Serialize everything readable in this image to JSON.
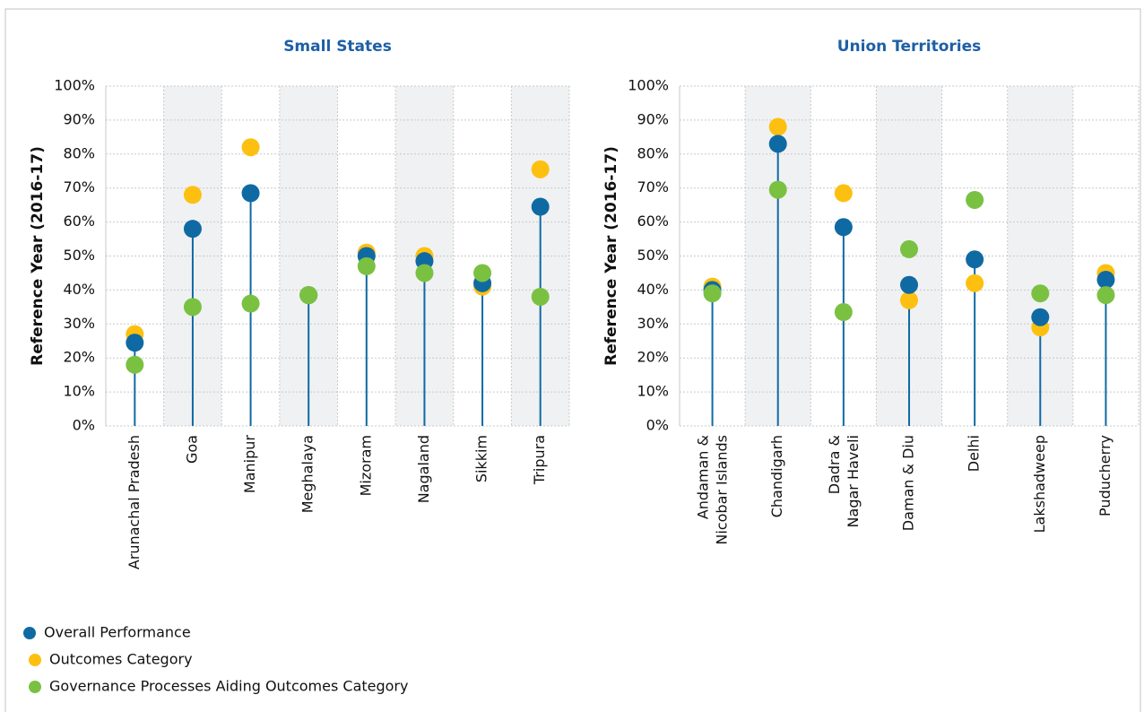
{
  "chart_data": [
    {
      "type": "lollipop",
      "title": "Small States",
      "y_label": "Reference Year (2016-17)",
      "categories": [
        "Arunachal Pradesh",
        "Goa",
        "Manipur",
        "Meghalaya",
        "Mizoram",
        "Nagaland",
        "Sikkim",
        "Tripura"
      ],
      "series": [
        {
          "name": "Overall Performance",
          "color": "#0f6aa3",
          "values": [
            24.5,
            58,
            68.5,
            38.5,
            50,
            48.5,
            42,
            64.5
          ]
        },
        {
          "name": "Outcomes Category",
          "color": "#fdc010",
          "values": [
            27,
            68,
            82,
            38.5,
            51,
            50,
            41,
            75.5
          ]
        },
        {
          "name": "Governance Processes Aiding Outcomes Category",
          "color": "#7ac142",
          "values": [
            18,
            35,
            36,
            38.5,
            47,
            45,
            45,
            38
          ]
        }
      ],
      "ylim": [
        0,
        100
      ],
      "yticks": [
        {
          "value": 0,
          "label": "0%"
        },
        {
          "value": 10,
          "label": "10%"
        },
        {
          "value": 20,
          "label": "20%"
        },
        {
          "value": 30,
          "label": "30%"
        },
        {
          "value": 40,
          "label": "40%"
        },
        {
          "value": 50,
          "label": "50%"
        },
        {
          "value": 60,
          "label": "60%"
        },
        {
          "value": 70,
          "label": "70%"
        },
        {
          "value": 80,
          "label": "80%"
        },
        {
          "value": 90,
          "label": "90%"
        },
        {
          "value": 100,
          "label": "100%"
        }
      ],
      "grid": true
    },
    {
      "type": "lollipop",
      "title": "Union Territories",
      "y_label": "Reference Year (2016-17)",
      "categories": [
        "Andaman &\nNicobar Islands",
        "Chandigarh",
        "Dadra &\nNagar Haveli",
        "Daman & Diu",
        "Delhi",
        "Lakshadweep",
        "Puducherry"
      ],
      "series": [
        {
          "color": "#0f6aa3",
          "values": [
            40,
            83,
            58.5,
            41.5,
            49,
            32,
            43
          ]
        },
        {
          "color": "#fdc010",
          "values": [
            41,
            88,
            68.5,
            37,
            42,
            29,
            45
          ]
        },
        {
          "color": "#7ac142",
          "values": [
            39,
            69.5,
            33.5,
            52,
            66.5,
            39,
            38.5
          ]
        }
      ],
      "ylim": [
        0,
        100
      ],
      "yticks": [
        {
          "value": 0,
          "label": "0%"
        },
        {
          "value": 10,
          "label": "10%"
        },
        {
          "value": 20,
          "label": "20%"
        },
        {
          "value": 30,
          "label": "30%"
        },
        {
          "value": 40,
          "label": "40%"
        },
        {
          "value": 50,
          "label": "50%"
        },
        {
          "value": 60,
          "label": "60%"
        },
        {
          "value": 70,
          "label": "70%"
        },
        {
          "value": 80,
          "label": "80%"
        },
        {
          "value": 90,
          "label": "90%"
        },
        {
          "value": 100,
          "label": "100%"
        }
      ],
      "grid": true
    }
  ]
}
